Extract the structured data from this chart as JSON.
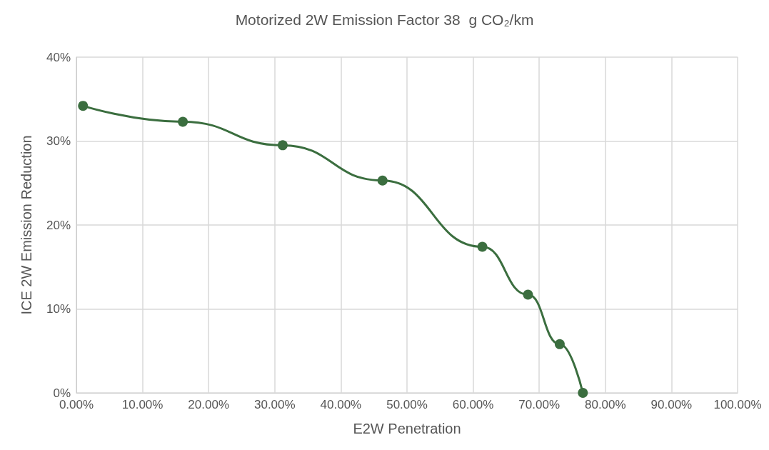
{
  "chart_data": {
    "type": "line",
    "title": "Motorized 2W Emission Factor 38  g CO₂/km",
    "xlabel": "E2W Penetration",
    "ylabel": "ICE 2W Emission Reduction",
    "x": [
      1,
      16.1,
      31.2,
      46.3,
      61.4,
      68.3,
      73.1,
      76.6
    ],
    "series": [
      {
        "color": "#3b6e3f",
        "values": [
          34.2,
          32.3,
          29.5,
          25.3,
          17.4,
          11.7,
          5.8,
          0
        ]
      }
    ],
    "xlim": [
      0,
      100
    ],
    "xticks": [
      {
        "value": 0,
        "label": "0.00%"
      },
      {
        "value": 10,
        "label": "10.00%"
      },
      {
        "value": 20,
        "label": "20.00%"
      },
      {
        "value": 30,
        "label": "30.00%"
      },
      {
        "value": 40,
        "label": "40.00%"
      },
      {
        "value": 50,
        "label": "50.00%"
      },
      {
        "value": 60,
        "label": "60.00%"
      },
      {
        "value": 70,
        "label": "70.00%"
      },
      {
        "value": 80,
        "label": "80.00%"
      },
      {
        "value": 90,
        "label": "90.00%"
      },
      {
        "value": 100,
        "label": "100.00%"
      }
    ],
    "ylim": [
      0,
      40
    ],
    "yticks": [
      {
        "value": 0,
        "label": "0%"
      },
      {
        "value": 10,
        "label": "10%"
      },
      {
        "value": 20,
        "label": "20%"
      },
      {
        "value": 30,
        "label": "30%"
      },
      {
        "value": 40,
        "label": "40%"
      }
    ],
    "grid": true,
    "marker": "circle",
    "line_style": "solid"
  }
}
